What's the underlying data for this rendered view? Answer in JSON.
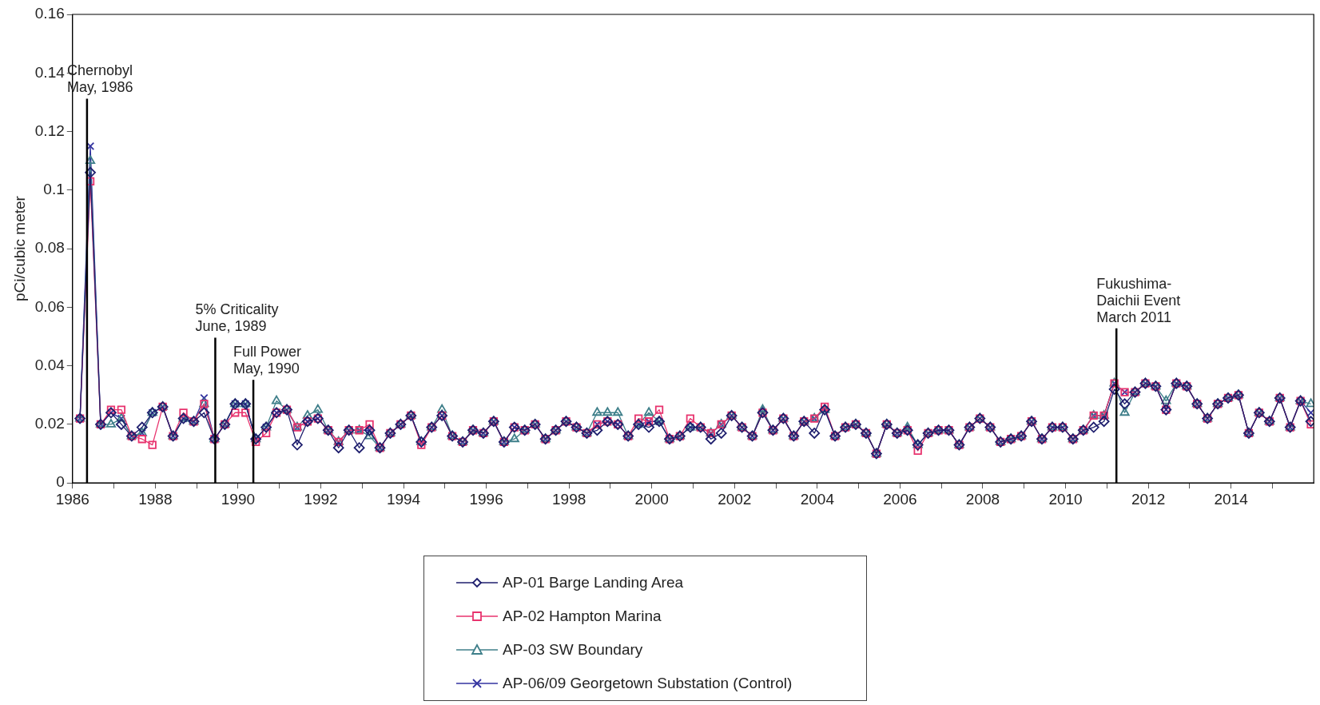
{
  "chart_data": {
    "type": "line",
    "ylabel": "pCi/cubic meter",
    "x": [
      1986.18,
      1986.43,
      1986.68,
      1986.93,
      1987.18,
      1987.43,
      1987.68,
      1987.93,
      1988.18,
      1988.43,
      1988.68,
      1988.93,
      1989.18,
      1989.43,
      1989.68,
      1989.93,
      1990.18,
      1990.43,
      1990.68,
      1990.93,
      1991.18,
      1991.43,
      1991.68,
      1991.93,
      1992.18,
      1992.43,
      1992.68,
      1992.93,
      1993.18,
      1993.43,
      1993.68,
      1993.93,
      1994.18,
      1994.43,
      1994.68,
      1994.93,
      1995.18,
      1995.43,
      1995.68,
      1995.93,
      1996.18,
      1996.43,
      1996.68,
      1996.93,
      1997.18,
      1997.43,
      1997.68,
      1997.93,
      1998.18,
      1998.43,
      1998.68,
      1998.93,
      1999.18,
      1999.43,
      1999.68,
      1999.93,
      2000.18,
      2000.43,
      2000.68,
      2000.93,
      2001.18,
      2001.43,
      2001.68,
      2001.93,
      2002.18,
      2002.43,
      2002.68,
      2002.93,
      2003.18,
      2003.43,
      2003.68,
      2003.93,
      2004.18,
      2004.43,
      2004.68,
      2004.93,
      2005.18,
      2005.43,
      2005.68,
      2005.93,
      2006.18,
      2006.43,
      2006.68,
      2006.93,
      2007.18,
      2007.43,
      2007.68,
      2007.93,
      2008.18,
      2008.43,
      2008.68,
      2008.93,
      2009.18,
      2009.43,
      2009.68,
      2009.93,
      2010.18,
      2010.43,
      2010.68,
      2010.93,
      2011.18,
      2011.43,
      2011.68,
      2011.93,
      2012.18,
      2012.43,
      2012.68,
      2012.93,
      2013.18,
      2013.43,
      2013.68,
      2013.93,
      2014.18,
      2014.43,
      2014.68,
      2014.93,
      2015.18,
      2015.43,
      2015.68,
      2015.93
    ],
    "series": [
      {
        "name": "AP-01 Barge Landing Area",
        "color": "#1f1f6e",
        "marker": "diamond",
        "values": [
          0.022,
          0.106,
          0.02,
          0.024,
          0.02,
          0.016,
          0.019,
          0.024,
          0.026,
          0.016,
          0.022,
          0.021,
          0.024,
          0.015,
          0.02,
          0.027,
          0.027,
          0.015,
          0.019,
          0.024,
          0.025,
          0.013,
          0.021,
          0.022,
          0.018,
          0.012,
          0.018,
          0.012,
          0.018,
          0.012,
          0.017,
          0.02,
          0.023,
          0.014,
          0.019,
          0.023,
          0.016,
          0.014,
          0.018,
          0.017,
          0.021,
          0.014,
          0.019,
          0.018,
          0.02,
          0.015,
          0.018,
          0.021,
          0.019,
          0.017,
          0.018,
          0.021,
          0.02,
          0.016,
          0.02,
          0.019,
          0.021,
          0.015,
          0.016,
          0.019,
          0.019,
          0.015,
          0.017,
          0.023,
          0.019,
          0.016,
          0.024,
          0.018,
          0.022,
          0.016,
          0.021,
          0.017,
          0.025,
          0.016,
          0.019,
          0.02,
          0.017,
          0.01,
          0.02,
          0.017,
          0.018,
          0.013,
          0.017,
          0.018,
          0.018,
          0.013,
          0.019,
          0.022,
          0.019,
          0.014,
          0.015,
          0.016,
          0.021,
          0.015,
          0.019,
          0.019,
          0.015,
          0.018,
          0.019,
          0.021,
          0.032,
          0.027,
          0.031,
          0.034,
          0.033,
          0.025,
          0.034,
          0.033,
          0.027,
          0.022,
          0.027,
          0.029,
          0.03,
          0.017,
          0.024,
          0.021,
          0.029,
          0.019,
          0.028,
          0.021
        ]
      },
      {
        "name": "AP-02 Hampton Marina",
        "color": "#e8336e",
        "marker": "square",
        "values": [
          0.022,
          0.103,
          0.02,
          0.025,
          0.025,
          0.016,
          0.015,
          0.013,
          0.026,
          0.016,
          0.024,
          0.021,
          0.027,
          0.015,
          0.02,
          0.024,
          0.024,
          0.014,
          0.017,
          0.024,
          0.025,
          0.019,
          0.021,
          0.022,
          0.018,
          0.014,
          0.018,
          0.018,
          0.02,
          0.012,
          0.017,
          0.02,
          0.023,
          0.013,
          0.019,
          0.023,
          0.016,
          0.014,
          0.018,
          0.017,
          0.021,
          0.014,
          0.019,
          0.018,
          0.02,
          0.015,
          0.018,
          0.021,
          0.019,
          0.017,
          0.02,
          0.021,
          0.02,
          0.016,
          0.022,
          0.021,
          0.025,
          0.015,
          0.016,
          0.022,
          0.019,
          0.017,
          0.02,
          0.023,
          0.019,
          0.016,
          0.024,
          0.018,
          0.022,
          0.016,
          0.021,
          0.022,
          0.026,
          0.016,
          0.019,
          0.02,
          0.017,
          0.01,
          0.02,
          0.017,
          0.018,
          0.011,
          0.017,
          0.018,
          0.018,
          0.013,
          0.019,
          0.022,
          0.019,
          0.014,
          0.015,
          0.016,
          0.021,
          0.015,
          0.019,
          0.019,
          0.015,
          0.018,
          0.023,
          0.023,
          0.034,
          0.031,
          0.031,
          0.034,
          0.033,
          0.025,
          0.034,
          0.033,
          0.027,
          0.022,
          0.027,
          0.029,
          0.03,
          0.017,
          0.024,
          0.021,
          0.029,
          0.019,
          0.028,
          0.02
        ]
      },
      {
        "name": "AP-03 SW Boundary",
        "color": "#3f7f8a",
        "marker": "triangle",
        "values": [
          0.022,
          0.11,
          0.02,
          0.02,
          0.022,
          0.016,
          0.017,
          0.024,
          0.026,
          0.016,
          0.022,
          0.021,
          0.027,
          0.015,
          0.02,
          0.027,
          0.027,
          0.015,
          0.019,
          0.028,
          0.025,
          0.019,
          0.023,
          0.025,
          0.018,
          0.014,
          0.018,
          0.018,
          0.016,
          0.012,
          0.017,
          0.02,
          0.023,
          0.014,
          0.019,
          0.025,
          0.016,
          0.014,
          0.018,
          0.017,
          0.021,
          0.014,
          0.015,
          0.018,
          0.02,
          0.015,
          0.018,
          0.021,
          0.019,
          0.017,
          0.024,
          0.024,
          0.024,
          0.016,
          0.02,
          0.024,
          0.021,
          0.015,
          0.016,
          0.019,
          0.019,
          0.017,
          0.02,
          0.023,
          0.019,
          0.016,
          0.025,
          0.018,
          0.022,
          0.016,
          0.021,
          0.022,
          0.025,
          0.016,
          0.019,
          0.02,
          0.017,
          0.01,
          0.02,
          0.017,
          0.019,
          0.013,
          0.017,
          0.018,
          0.018,
          0.013,
          0.019,
          0.022,
          0.019,
          0.014,
          0.015,
          0.016,
          0.021,
          0.015,
          0.019,
          0.019,
          0.015,
          0.018,
          0.023,
          0.023,
          0.034,
          0.024,
          0.031,
          0.034,
          0.033,
          0.028,
          0.034,
          0.033,
          0.027,
          0.022,
          0.027,
          0.029,
          0.03,
          0.017,
          0.024,
          0.021,
          0.029,
          0.019,
          0.028,
          0.027
        ]
      },
      {
        "name": "AP-06/09 Georgetown Substation (Control)",
        "color": "#3333a0",
        "marker": "cross",
        "values": [
          0.022,
          0.115,
          0.02,
          0.024,
          0.022,
          0.016,
          0.017,
          0.024,
          0.026,
          0.016,
          0.022,
          0.021,
          0.029,
          0.015,
          0.02,
          0.027,
          0.027,
          0.015,
          0.019,
          0.024,
          0.025,
          0.019,
          0.021,
          0.022,
          0.018,
          0.014,
          0.018,
          0.018,
          0.018,
          0.012,
          0.017,
          0.02,
          0.023,
          0.014,
          0.019,
          0.023,
          0.016,
          0.014,
          0.018,
          0.017,
          0.021,
          0.014,
          0.019,
          0.018,
          0.02,
          0.015,
          0.018,
          0.021,
          0.019,
          0.017,
          0.02,
          0.021,
          0.02,
          0.016,
          0.02,
          0.021,
          0.021,
          0.015,
          0.016,
          0.019,
          0.019,
          0.017,
          0.02,
          0.023,
          0.019,
          0.016,
          0.024,
          0.018,
          0.022,
          0.016,
          0.021,
          0.022,
          0.025,
          0.016,
          0.019,
          0.02,
          0.017,
          0.01,
          0.02,
          0.017,
          0.018,
          0.013,
          0.017,
          0.018,
          0.018,
          0.013,
          0.019,
          0.022,
          0.019,
          0.014,
          0.015,
          0.016,
          0.021,
          0.015,
          0.019,
          0.019,
          0.015,
          0.018,
          0.023,
          0.023,
          0.034,
          0.031,
          0.031,
          0.034,
          0.033,
          0.025,
          0.034,
          0.033,
          0.027,
          0.022,
          0.027,
          0.029,
          0.03,
          0.017,
          0.024,
          0.021,
          0.029,
          0.019,
          0.028,
          0.024
        ]
      }
    ],
    "xlim": [
      1986,
      2016
    ],
    "xticks": [
      1986,
      {
        "value": 1987,
        "label": null
      },
      1988,
      {
        "value": 1989,
        "label": null
      },
      1990,
      {
        "value": 1991,
        "label": null
      },
      1992,
      {
        "value": 1993,
        "label": null
      },
      1994,
      {
        "value": 1995,
        "label": null
      },
      1996,
      {
        "value": 1997,
        "label": null
      },
      1998,
      {
        "value": 1999,
        "label": null
      },
      2000,
      {
        "value": 2001,
        "label": null
      },
      2002,
      {
        "value": 2003,
        "label": null
      },
      2004,
      {
        "value": 2005,
        "label": null
      },
      2006,
      {
        "value": 2007,
        "label": null
      },
      2008,
      {
        "value": 2009,
        "label": null
      },
      2010,
      {
        "value": 2011,
        "label": null
      },
      2012,
      {
        "value": 2013,
        "label": null
      },
      2014,
      {
        "value": 2015,
        "label": null
      }
    ],
    "ylim": [
      0,
      0.16
    ],
    "yticks": [
      0,
      0.02,
      0.04,
      0.06,
      0.08,
      0.1,
      0.12,
      0.14,
      0.16
    ],
    "ref_lines": [
      {
        "axis": "x",
        "value": 1986.35,
        "label": "Chernobyl\nMay, 1986",
        "color": "#000000"
      },
      {
        "axis": "x",
        "value": 1989.45,
        "label": "5% Criticality\nJune, 1989",
        "color": "#000000"
      },
      {
        "axis": "x",
        "value": 1990.37,
        "label": "Full Power\nMay, 1990",
        "color": "#000000"
      },
      {
        "axis": "x",
        "value": 2011.23,
        "label": "Fukushima-\nDaichii Event\nMarch 2011",
        "color": "#000000"
      }
    ],
    "grid": false,
    "legend": "bottom",
    "line_style": "solid"
  }
}
